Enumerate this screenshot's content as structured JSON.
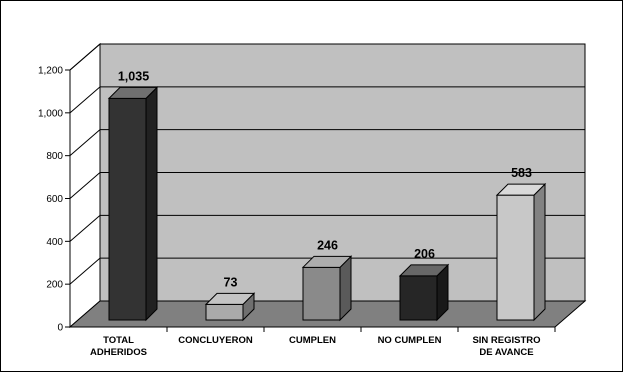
{
  "chart_data": {
    "type": "bar",
    "title": "",
    "xlabel": "",
    "ylabel": "",
    "categories": [
      [
        "TOTAL",
        "ADHERIDOS"
      ],
      [
        "CONCLUYERON"
      ],
      [
        "CUMPLEN"
      ],
      [
        "NO CUMPLEN"
      ],
      [
        "SIN REGISTRO",
        "DE AVANCE"
      ]
    ],
    "values": [
      1035,
      73,
      246,
      206,
      583
    ],
    "value_labels": [
      "1,035",
      "73",
      "246",
      "206",
      "583"
    ],
    "ylim": [
      0,
      1200
    ],
    "yticks": [
      0,
      200,
      400,
      600,
      800,
      1000,
      1200
    ],
    "ytick_labels": [
      "0",
      "200",
      "400",
      "600",
      "800",
      "1,000",
      "1,200"
    ],
    "grid": true,
    "legend": "none",
    "three_d": true,
    "colors": {
      "wall": "#c0c0c0",
      "floor": "#808080",
      "bars": [
        "#333333",
        "#aaaaaa",
        "#8a8a8a",
        "#262626",
        "#c8c8c8"
      ]
    }
  }
}
